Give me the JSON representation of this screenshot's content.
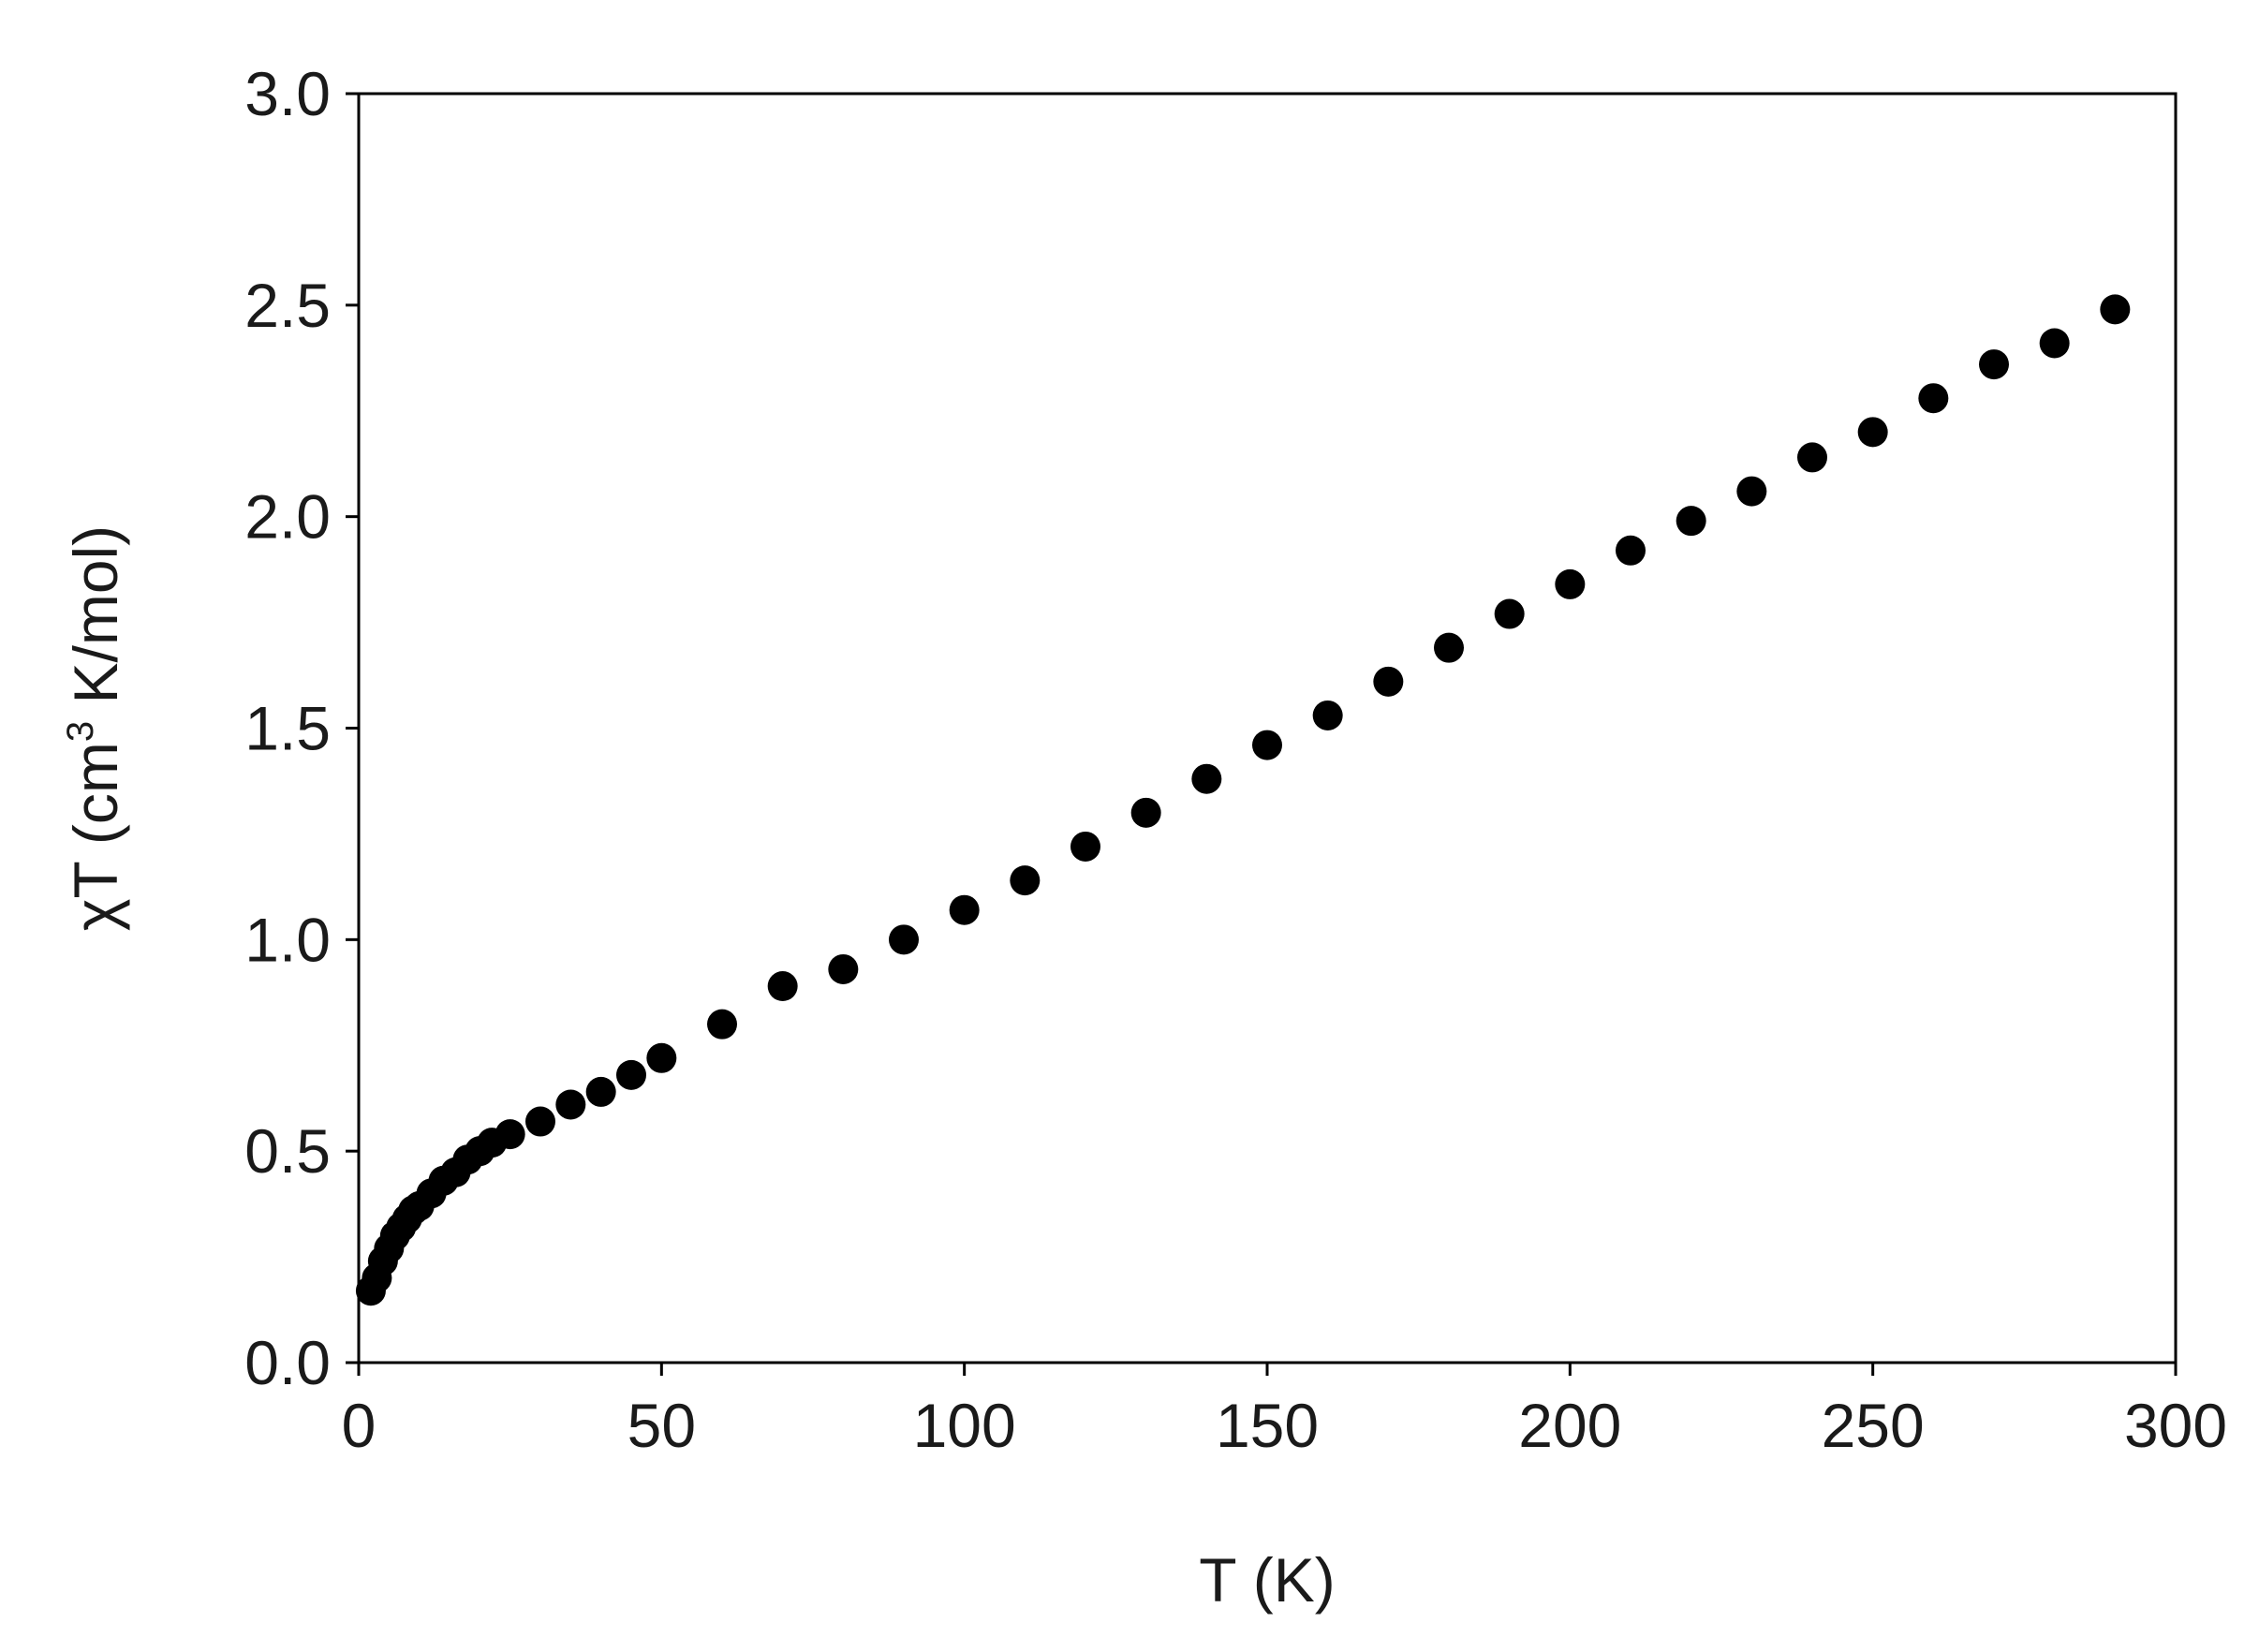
{
  "chart_data": {
    "type": "scatter",
    "xlabel": "T (K)",
    "ylabel": {
      "prefix": "χT (cm",
      "superscript": "3",
      "suffix": " K/mol)"
    },
    "xlim": [
      0,
      300
    ],
    "ylim": [
      0,
      3.0
    ],
    "xticks": [
      0,
      50,
      100,
      150,
      200,
      250,
      300
    ],
    "xtick_labels": [
      "0",
      "50",
      "100",
      "150",
      "200",
      "250",
      "300"
    ],
    "yticks": [
      0,
      0.5,
      1.0,
      1.5,
      2.0,
      2.5,
      3.0
    ],
    "ytick_labels": [
      "0.0",
      "0.5",
      "1.0",
      "1.5",
      "2.0",
      "2.5",
      "3.0"
    ],
    "grid": false,
    "marker_color": "#000000",
    "series": [
      {
        "x": [
          2,
          3,
          4,
          5,
          6,
          7,
          8,
          9,
          10,
          12,
          14,
          16,
          18,
          20,
          22,
          25,
          30,
          35,
          40,
          45,
          50,
          60,
          70,
          80,
          90,
          100,
          110,
          120,
          130,
          140,
          150,
          160,
          170,
          180,
          190,
          200,
          210,
          220,
          230,
          240,
          250,
          260,
          270,
          280,
          290
        ],
        "y": [
          0.17,
          0.2,
          0.24,
          0.27,
          0.3,
          0.32,
          0.34,
          0.36,
          0.37,
          0.4,
          0.43,
          0.45,
          0.48,
          0.5,
          0.52,
          0.54,
          0.57,
          0.61,
          0.64,
          0.68,
          0.72,
          0.8,
          0.89,
          0.93,
          1.0,
          1.07,
          1.14,
          1.22,
          1.3,
          1.38,
          1.46,
          1.53,
          1.61,
          1.69,
          1.77,
          1.84,
          1.92,
          1.99,
          2.06,
          2.14,
          2.2,
          2.28,
          2.36,
          2.41,
          2.49
        ]
      }
    ]
  }
}
